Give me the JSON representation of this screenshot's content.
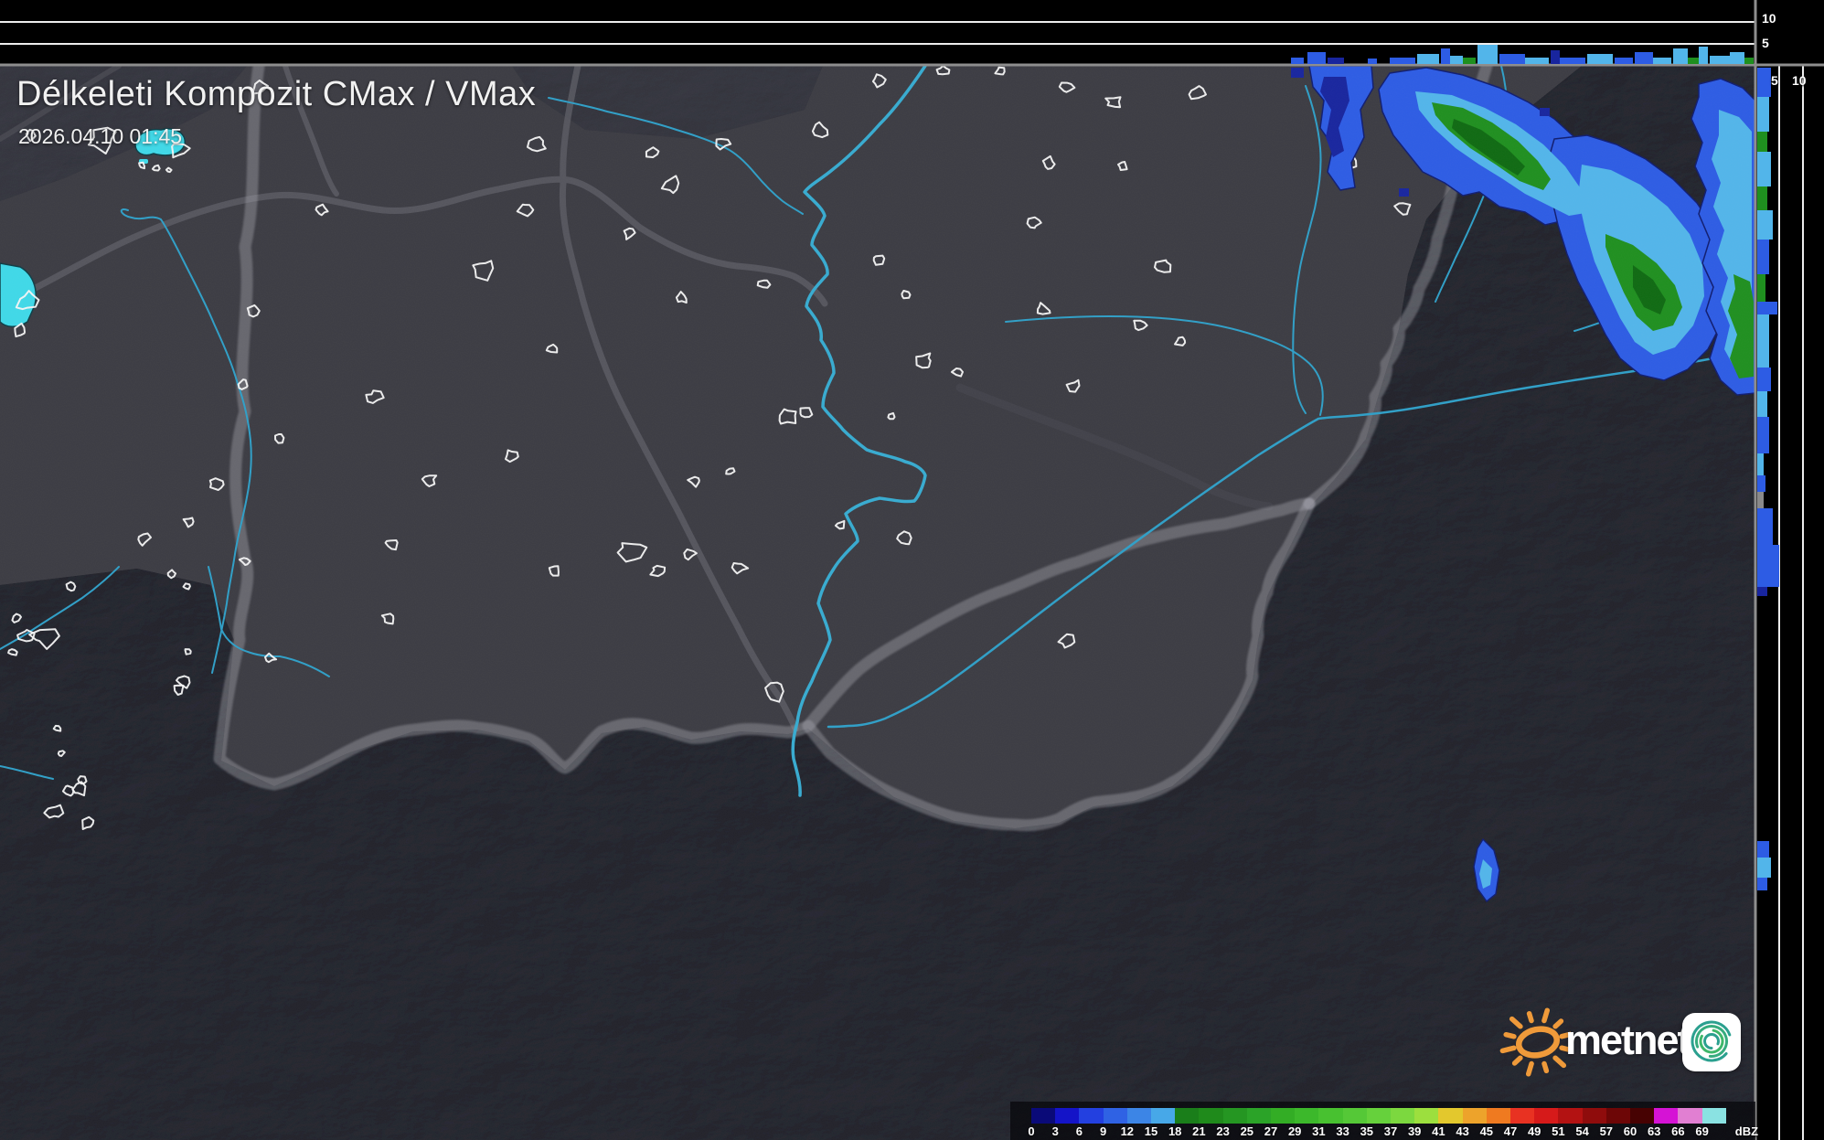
{
  "header": {
    "title": "Délkeleti Kompozit CMax / VMax",
    "timestamp": "2026.04.10 01:45"
  },
  "panels": {
    "top_axis_labels": [
      "10",
      "5"
    ],
    "right_axis_labels": [
      "5",
      "10"
    ]
  },
  "colorbar": {
    "unit": "dBZ",
    "labels": [
      "0",
      "3",
      "6",
      "9",
      "12",
      "15",
      "18",
      "21",
      "23",
      "25",
      "27",
      "29",
      "31",
      "33",
      "35",
      "37",
      "39",
      "41",
      "43",
      "45",
      "47",
      "49",
      "51",
      "54",
      "57",
      "60",
      "63",
      "66",
      "69"
    ],
    "colors": [
      "#0a0a78",
      "#1414c8",
      "#2340e0",
      "#2f62e4",
      "#3c85e6",
      "#47a8e8",
      "#1a7e1a",
      "#1f8a1b",
      "#259622",
      "#2ba328",
      "#33ad25",
      "#3cb82b",
      "#48c130",
      "#55c837",
      "#66d13c",
      "#7cd83f",
      "#9cdf3e",
      "#e3c82d",
      "#eda32b",
      "#ef7a20",
      "#e83222",
      "#d61a1a",
      "#b31212",
      "#8f0c0c",
      "#6d0606",
      "#470202",
      "#d513d5",
      "#e17fd2",
      "#8ae2e2"
    ]
  },
  "logo": {
    "brand": "metnet"
  },
  "colors": {
    "panel_background": "#000000",
    "map_plain": "#3c3c43",
    "terrain_dark": "#26262c",
    "border_band": "#a9a9b0",
    "road": "#5a5a63",
    "river": "#2f9fc7",
    "lake": "#3fd9e8",
    "town_outline": "#f5f5f5",
    "echo_blue": "#2d5ce4",
    "echo_dark_blue": "#18259e",
    "echo_light_blue": "#52b5ea",
    "echo_green": "#1f8f1f",
    "echo_dark_green": "#0f6a12",
    "sun_orange": "#ef9a3a",
    "spiral_teal": "#2ba08f"
  }
}
